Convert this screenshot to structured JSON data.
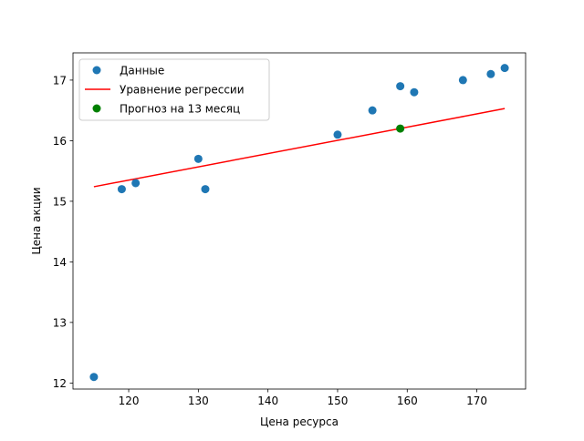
{
  "chart_data": {
    "type": "scatter",
    "title": "",
    "xlabel": "Цена ресурса",
    "ylabel": "Цена акции",
    "xlim": [
      112,
      177
    ],
    "ylim": [
      11.9,
      17.45
    ],
    "xticks": [
      120,
      130,
      140,
      150,
      160,
      170
    ],
    "yticks": [
      12,
      13,
      14,
      15,
      16,
      17
    ],
    "grid": false,
    "legend_position": "top-left",
    "series": [
      {
        "name": "Данные",
        "kind": "scatter",
        "color": "#1f77b4",
        "points": [
          {
            "x": 115,
            "y": 12.1
          },
          {
            "x": 119,
            "y": 15.2
          },
          {
            "x": 121,
            "y": 15.3
          },
          {
            "x": 130,
            "y": 15.7
          },
          {
            "x": 131,
            "y": 15.2
          },
          {
            "x": 150,
            "y": 16.1
          },
          {
            "x": 155,
            "y": 16.5
          },
          {
            "x": 159,
            "y": 16.9
          },
          {
            "x": 161,
            "y": 16.8
          },
          {
            "x": 168,
            "y": 17.0
          },
          {
            "x": 172,
            "y": 17.1
          },
          {
            "x": 174,
            "y": 17.2
          }
        ]
      },
      {
        "name": "Уравнение регрессии",
        "kind": "line",
        "color": "#ff0000",
        "points": [
          {
            "x": 115,
            "y": 15.24
          },
          {
            "x": 174,
            "y": 16.53
          }
        ]
      },
      {
        "name": "Прогноз на 13 месяц",
        "kind": "scatter",
        "color": "#008000",
        "points": [
          {
            "x": 159,
            "y": 16.2
          }
        ]
      }
    ]
  }
}
